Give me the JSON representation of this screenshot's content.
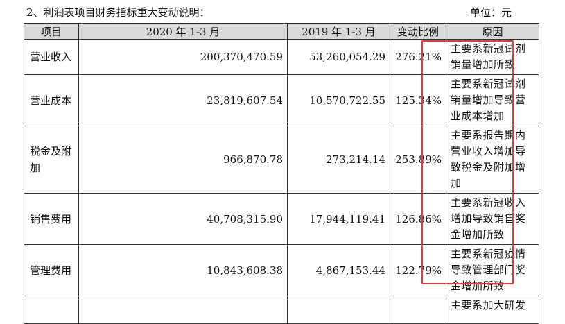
{
  "caption": {
    "title": "2、利润表项目财务指标重大变动说明：",
    "unit": "单位：元"
  },
  "table": {
    "headers": [
      "项目",
      "2020 年 1-3 月",
      "2019 年 1-3 月",
      "变动比例",
      "原因"
    ],
    "rows": [
      {
        "item": "营业收入",
        "y2020": "200,370,470.59",
        "y2019": "53,260,054.29",
        "change": "276.21%",
        "reason": "主要系新冠试剂销量增加所致"
      },
      {
        "item": "营业成本",
        "y2020": "23,819,607.54",
        "y2019": "10,570,722.55",
        "change": "125.34%",
        "reason": "主要系新冠试剂销量增加导致营业成本增加"
      },
      {
        "item": "税金及附加",
        "y2020": "966,870.78",
        "y2019": "273,214.14",
        "change": "253.89%",
        "reason": "主要系报告期内营业收入增加导致税金及附加增加"
      },
      {
        "item": "销售费用",
        "y2020": "40,708,315.90",
        "y2019": "17,944,119.41",
        "change": "126.86%",
        "reason": "主要系新冠收入增加导致销售奖金增加所致"
      },
      {
        "item": "管理费用",
        "y2020": "10,843,608.38",
        "y2019": "4,867,153.44",
        "change": "122.79%",
        "reason": "主要系新冠疫情导致管理部门奖金增加所致"
      },
      {
        "item": "",
        "y2020": "",
        "y2019": "",
        "change": "",
        "reason": "主要系加大研发"
      }
    ]
  },
  "highlight_color": "#e23b3b"
}
